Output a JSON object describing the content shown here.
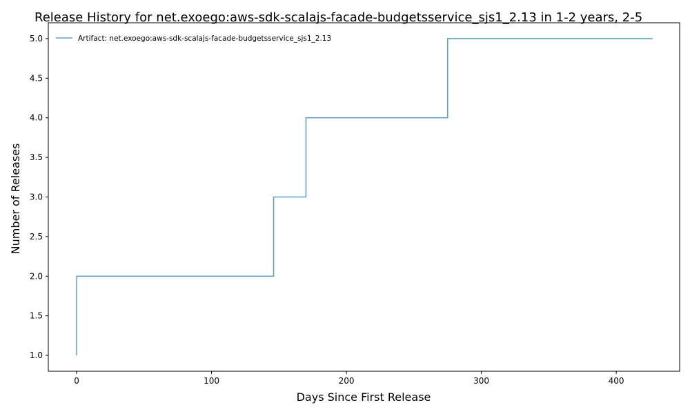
{
  "chart_data": {
    "type": "line",
    "title": "Release History for net.exoego:aws-sdk-scalajs-facade-budgetsservice_sjs1_2.13 in 1-2 years, 2-5",
    "xlabel": "Days Since First Release",
    "ylabel": "Number of Releases",
    "xlim": [
      -21,
      447
    ],
    "ylim": [
      0.8,
      5.2
    ],
    "x_ticks": [
      0,
      100,
      200,
      300,
      400
    ],
    "x_tick_labels": [
      "0",
      "100",
      "200",
      "300",
      "400"
    ],
    "y_ticks": [
      1.0,
      1.5,
      2.0,
      2.5,
      3.0,
      3.5,
      4.0,
      4.5,
      5.0
    ],
    "y_tick_labels": [
      "1.0",
      "1.5",
      "2.0",
      "2.5",
      "3.0",
      "3.5",
      "4.0",
      "4.5",
      "5.0"
    ],
    "grid": false,
    "legend_position": "top-left",
    "step": "post",
    "series": [
      {
        "name": "Artifact: net.exoego:aws-sdk-scalajs-facade-budgetsservice_sjs1_2.13",
        "color": "#5fa2d0",
        "x": [
          0,
          0,
          146,
          170,
          275,
          427
        ],
        "y": [
          1,
          2,
          3,
          4,
          5,
          5
        ]
      }
    ]
  }
}
